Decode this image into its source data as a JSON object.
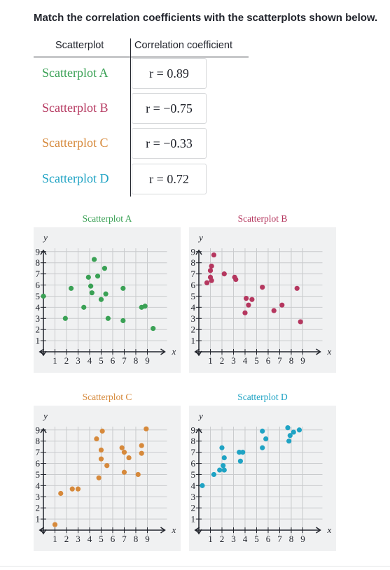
{
  "prompt": "Match the correlation coefficients with the scatterplots shown below.",
  "table": {
    "headers": [
      "Scatterplot",
      "Correlation coefficient"
    ],
    "rows": [
      [
        "Scatterplot A",
        "r = 0.89"
      ],
      [
        "Scatterplot B",
        "r = −0.75"
      ],
      [
        "Scatterplot C",
        "r = −0.33"
      ],
      [
        "Scatterplot D",
        "r = 0.72"
      ]
    ]
  },
  "chart_data": [
    {
      "type": "scatter",
      "title": "Scatterplot A",
      "color": "#3aa155",
      "x_label": "x",
      "y_label": "y",
      "x": [
        0,
        1.9,
        2.4,
        3.5,
        3.9,
        4.1,
        4.2,
        4.4,
        4.7,
        5.0,
        5.3,
        5.4,
        5.6,
        6.9,
        6.9,
        8.5,
        8.8,
        9.5
      ],
      "y": [
        5.0,
        3.0,
        5.7,
        4.0,
        6.7,
        5.9,
        5.3,
        8.3,
        6.8,
        4.7,
        7.5,
        5.2,
        3.0,
        5.7,
        2.8,
        4.0,
        4.1,
        2.1
      ],
      "xlim": [
        -0.5,
        10.7
      ],
      "ylim": [
        -0.5,
        9.3
      ],
      "xticks": [
        1,
        2,
        3,
        4,
        5,
        6,
        7,
        8,
        9
      ],
      "yticks": [
        1,
        2,
        3,
        4,
        5,
        6,
        7,
        8,
        9
      ],
      "grid": true
    },
    {
      "type": "scatter",
      "title": "Scatterplot B",
      "color": "#b5375f",
      "x_label": "x",
      "y_label": "y",
      "x": [
        0.7,
        1.0,
        1.0,
        1.1,
        1.1,
        1.3,
        2.2,
        3.1,
        3.2,
        4.0,
        4.1,
        4.3,
        4.6,
        5.5,
        6.5,
        7.2,
        8.5,
        8.8
      ],
      "y": [
        6.2,
        7.3,
        6.7,
        7.7,
        6.4,
        8.7,
        7.0,
        6.7,
        6.5,
        3.5,
        4.8,
        4.2,
        4.7,
        5.8,
        3.7,
        4.2,
        5.7,
        2.7
      ],
      "xlim": [
        -0.5,
        10.7
      ],
      "ylim": [
        -0.5,
        9.3
      ],
      "xticks": [
        1,
        2,
        3,
        4,
        5,
        6,
        7,
        8,
        9
      ],
      "yticks": [
        1,
        2,
        3,
        4,
        5,
        6,
        7,
        8,
        9
      ],
      "grid": true
    },
    {
      "type": "scatter",
      "title": "Scatterplot C",
      "color": "#d6893b",
      "x_label": "x",
      "y_label": "y",
      "x": [
        1.0,
        1.5,
        2.5,
        3.0,
        4.6,
        4.8,
        5.0,
        5.1,
        5.0,
        5.5,
        6.8,
        7.0,
        7.0,
        7.4,
        8.2,
        8.5,
        8.5,
        8.9
      ],
      "y": [
        0.5,
        3.3,
        3.7,
        3.7,
        8.2,
        4.7,
        6.4,
        8.9,
        7.2,
        5.8,
        7.4,
        7.0,
        5.2,
        6.5,
        5.0,
        7.6,
        6.9,
        9.1
      ],
      "xlim": [
        -0.5,
        10.7
      ],
      "ylim": [
        -0.5,
        9.3
      ],
      "xticks": [
        1,
        2,
        3,
        4,
        5,
        6,
        7,
        8,
        9
      ],
      "yticks": [
        1,
        2,
        3,
        4,
        5,
        6,
        7,
        8,
        9
      ],
      "grid": true
    },
    {
      "type": "scatter",
      "title": "Scatterplot D",
      "color": "#1fa3c4",
      "x_label": "x",
      "y_label": "y",
      "x": [
        0.3,
        1.3,
        1.8,
        2.0,
        2.1,
        2.2,
        2.2,
        3.5,
        3.8,
        3.6,
        5.5,
        5.5,
        5.8,
        7.7,
        7.8,
        7.9,
        8.2,
        8.7
      ],
      "y": [
        4.0,
        5.0,
        5.4,
        7.4,
        5.8,
        6.5,
        5.4,
        7.0,
        7.0,
        6.2,
        7.4,
        8.9,
        8.2,
        9.2,
        8.0,
        8.5,
        8.8,
        9.0
      ],
      "xlim": [
        -0.5,
        10.7
      ],
      "ylim": [
        -0.5,
        9.3
      ],
      "xticks": [
        1,
        2,
        3,
        4,
        5,
        6,
        7,
        8,
        9
      ],
      "yticks": [
        1,
        2,
        3,
        4,
        5,
        6,
        7,
        8,
        9
      ],
      "grid": true
    }
  ]
}
